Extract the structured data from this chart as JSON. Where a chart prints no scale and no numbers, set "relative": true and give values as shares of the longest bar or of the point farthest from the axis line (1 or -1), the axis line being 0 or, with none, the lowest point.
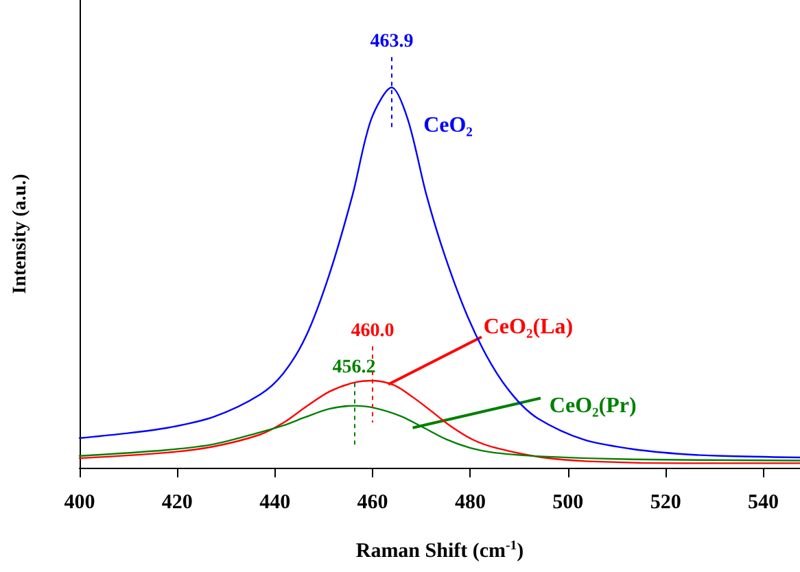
{
  "chart_data": {
    "type": "line",
    "relative": true,
    "xlabel": "Raman Shift (cm$^{-1}$)",
    "ylabel": "Intensity (a.u.)",
    "xlim": [
      400,
      547.5
    ],
    "xticks": [
      400,
      420,
      440,
      460,
      480,
      500,
      520,
      540
    ],
    "grid": false,
    "legend": false,
    "marker": "none",
    "line_style": "solid",
    "annotations": [
      {
        "text": "463.9",
        "x": 463.9,
        "y": 1
      },
      {
        "text": "460.0",
        "x": 460.0,
        "y": 0.229
      },
      {
        "text": "456.2",
        "x": 456.2,
        "y": 0.163
      }
    ],
    "series": [
      {
        "name": "CeO₂",
        "color": "#0000ff",
        "x": [
          400,
          408.5,
          418,
          427.5,
          436.9,
          441.7,
          446.4,
          451.1,
          455.9,
          459.7,
          463.9,
          467.2,
          471,
          474.8,
          479.5,
          484.3,
          489,
          493.8,
          503.2,
          512.7,
          522.2,
          531.6,
          547.5
        ],
        "values": [
          0.078,
          0.089,
          0.105,
          0.134,
          0.192,
          0.248,
          0.347,
          0.507,
          0.718,
          0.916,
          1,
          0.916,
          0.718,
          0.557,
          0.396,
          0.272,
          0.186,
          0.13,
          0.074,
          0.05,
          0.037,
          0.031,
          0.027
        ]
      },
      {
        "name": "CeO₂(La)",
        "color": "#ff0000",
        "x": [
          400,
          418,
          427.5,
          436.9,
          441.7,
          446.4,
          451.1,
          455.9,
          460,
          464.4,
          468.2,
          472,
          475.8,
          480.5,
          485.3,
          494.8,
          504.2,
          523.2,
          547.5
        ],
        "values": [
          0.025,
          0.04,
          0.056,
          0.087,
          0.118,
          0.161,
          0.2,
          0.223,
          0.229,
          0.217,
          0.186,
          0.149,
          0.111,
          0.074,
          0.052,
          0.027,
          0.017,
          0.012,
          0.012
        ]
      },
      {
        "name": "CeO₂(Pr)",
        "color": "#008000",
        "x": [
          400,
          418,
          427.5,
          436.9,
          441.7,
          446.4,
          451.1,
          456.2,
          460.1,
          465.7,
          470.5,
          475.2,
          480,
          484.7,
          494.2,
          513.2,
          547.5
        ],
        "values": [
          0.031,
          0.047,
          0.062,
          0.093,
          0.111,
          0.134,
          0.155,
          0.163,
          0.158,
          0.136,
          0.105,
          0.074,
          0.052,
          0.04,
          0.03,
          0.022,
          0.019
        ]
      }
    ]
  }
}
